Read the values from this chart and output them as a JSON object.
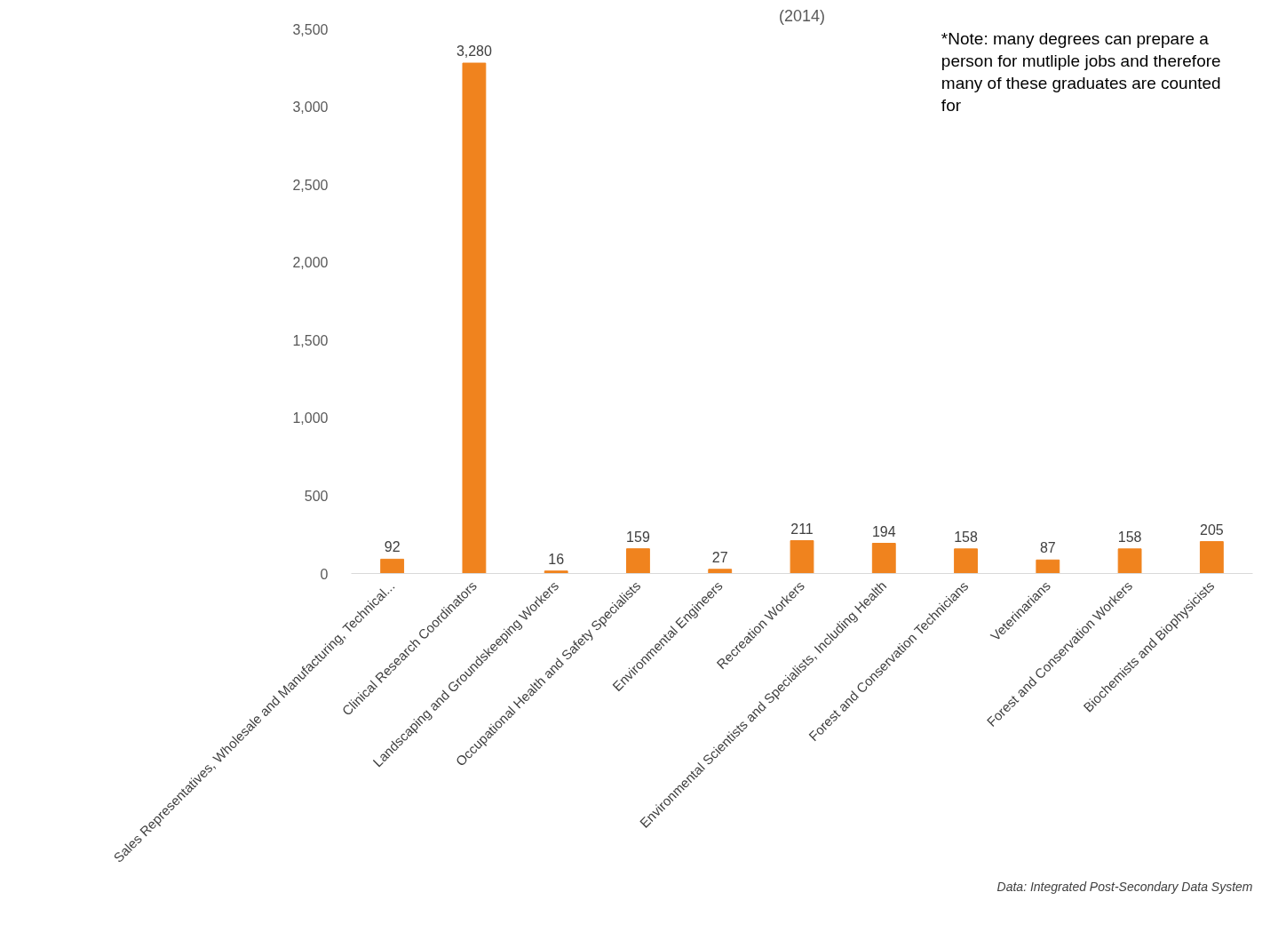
{
  "chart_data": {
    "type": "bar",
    "title": "(2014)",
    "categories": [
      "Sales Representatives, Wholesale and Manufacturing, Technical...",
      "Clinical Research Coordinators",
      "Landscaping and Groundskeeping Workers",
      "Occupational Health and Safety Specialists",
      "Environmental Engineers",
      "Recreation Workers",
      "Environmental Scientists and Specialists, Including Health",
      "Forest and Conservation Technicians",
      "Veterinarians",
      "Forest and Conservation Workers",
      "Biochemists and Biophysicists"
    ],
    "values": [
      92,
      3280,
      16,
      159,
      27,
      211,
      194,
      158,
      87,
      158,
      205
    ],
    "color": "#f0831e",
    "ylim": [
      0,
      3500
    ],
    "yticks": [
      0,
      500,
      {
        "value": 1000,
        "label": "1,000"
      },
      {
        "value": 1500,
        "label": "1,500"
      },
      {
        "value": 2000,
        "label": "2,000"
      },
      {
        "value": 2500,
        "label": "2,500"
      },
      {
        "value": 3000,
        "label": "3,000"
      },
      {
        "value": 3500,
        "label": "3,500"
      }
    ],
    "value_labels": [
      "92",
      "3,280",
      "16",
      "159",
      "27",
      "211",
      "194",
      "158",
      "87",
      "158",
      "205"
    ],
    "grid": false,
    "annotations": [
      "*Note: many degrees can prepare a person for mutliple jobs and therefore many of these graduates are counted for",
      "Data: Integrated Post-Secondary Data System"
    ]
  }
}
